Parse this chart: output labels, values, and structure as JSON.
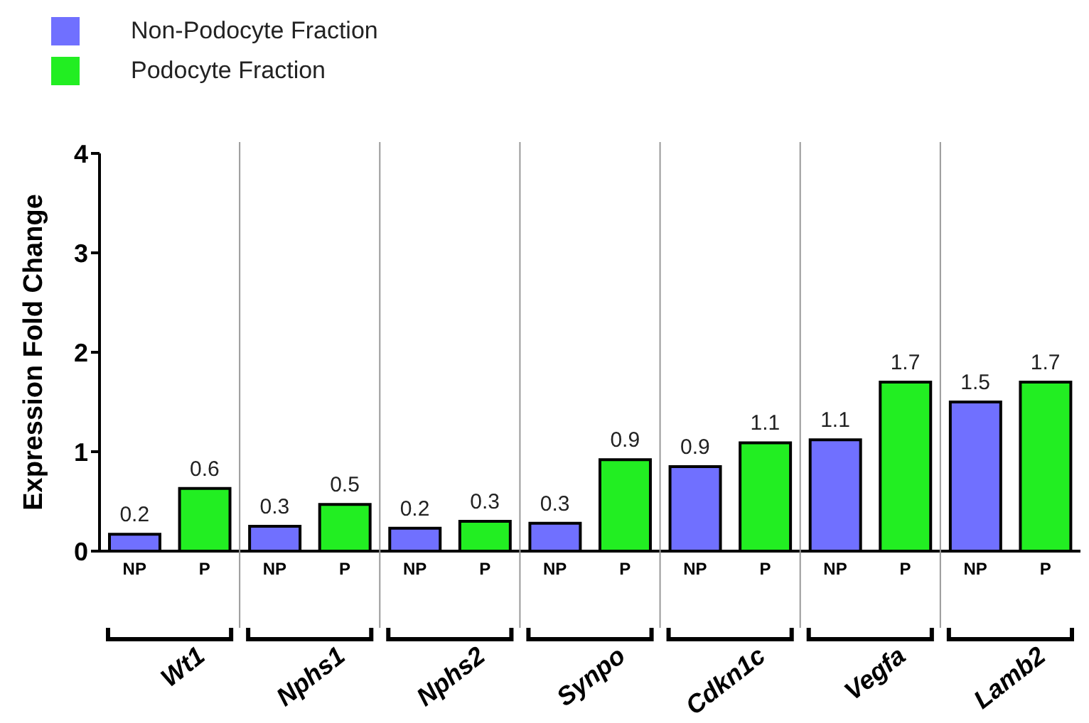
{
  "chart_data": {
    "type": "bar",
    "stacked": true,
    "ylabel": "Expression Fold Change",
    "categories": [
      "NP",
      "P",
      "NP",
      "P",
      "NP",
      "P",
      "NP",
      "P",
      "NP",
      "P",
      "NP",
      "P",
      "NP",
      "P"
    ],
    "series": [
      {
        "name": "Non-Podocyte Fraction",
        "color": "#7070ff",
        "values": [
          0.17,
          null,
          0.25,
          null,
          0.23,
          null,
          0.28,
          null,
          0.85,
          null,
          1.12,
          null,
          1.5,
          null
        ],
        "value_labels": [
          "0.2",
          null,
          "0.3",
          null,
          "0.2",
          null,
          "0.3",
          null,
          "0.9",
          null,
          "1.1",
          null,
          "1.5",
          null
        ]
      },
      {
        "name": "Podocyte Fraction",
        "color": "#22ee22",
        "values": [
          null,
          0.63,
          null,
          0.47,
          null,
          0.3,
          null,
          0.92,
          null,
          1.09,
          null,
          1.7,
          null,
          1.7
        ],
        "value_labels": [
          null,
          "0.6",
          null,
          "0.5",
          null,
          "0.3",
          null,
          "0.9",
          null,
          "1.1",
          null,
          "1.7",
          null,
          "1.7"
        ]
      }
    ],
    "ylim": [
      0,
      4
    ],
    "yticks": [
      0,
      1,
      2,
      3,
      4
    ],
    "grid": false,
    "legend": "top left",
    "annotations": [
      "Wt1",
      "Nphs1",
      "Nphs2",
      "Synpo",
      "Cdkn1c",
      "Vegfa",
      "Lamb2"
    ]
  }
}
